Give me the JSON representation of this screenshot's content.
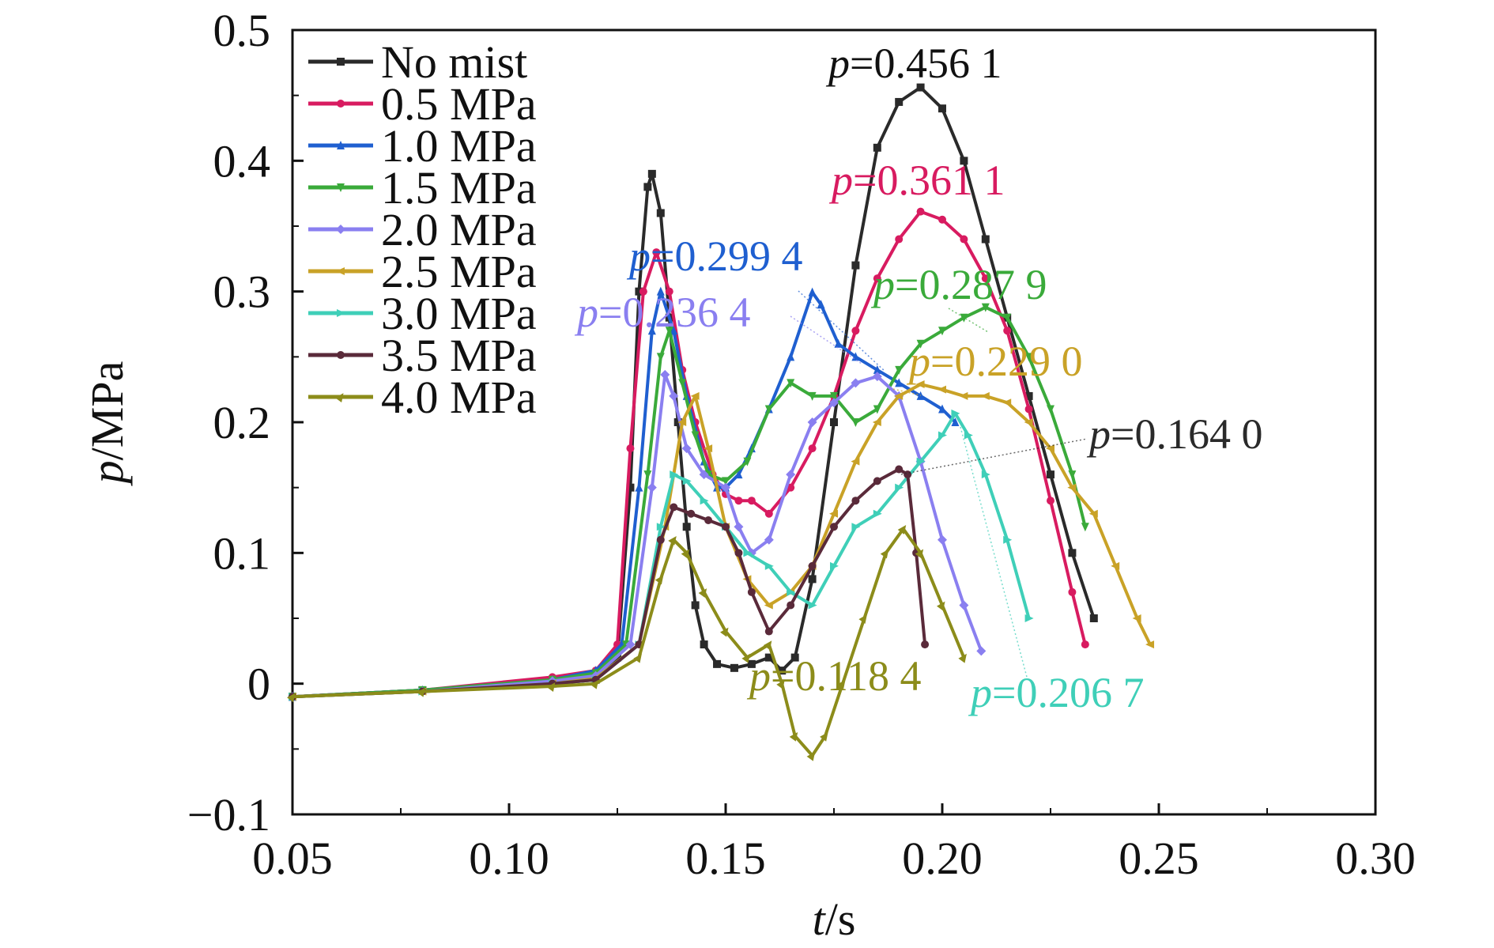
{
  "chart_data": {
    "type": "line",
    "xlabel": {
      "var": "t",
      "unit": "/s"
    },
    "ylabel": {
      "var": "p",
      "unit": "/MPa"
    },
    "xlim": [
      0.05,
      0.3
    ],
    "ylim": [
      -0.1,
      0.5
    ],
    "xticks": [
      0.05,
      0.1,
      0.15,
      0.2,
      0.25,
      0.3
    ],
    "xtick_labels": [
      "0.05",
      "0.10",
      "0.15",
      "0.20",
      "0.25",
      "0.30"
    ],
    "yticks": [
      -0.1,
      0,
      0.1,
      0.2,
      0.3,
      0.4,
      0.5
    ],
    "ytick_labels": [
      "−0.1",
      "0",
      "0.1",
      "0.2",
      "0.3",
      "0.4",
      "0.5"
    ],
    "grid": false,
    "legend_position": "top-left",
    "series": [
      {
        "name": "No mist",
        "color": "#2a2a2a",
        "marker": "square",
        "points": [
          [
            0.05,
            -0.01
          ],
          [
            0.08,
            -0.005
          ],
          [
            0.11,
            0.0
          ],
          [
            0.12,
            0.003
          ],
          [
            0.125,
            0.02
          ],
          [
            0.128,
            0.15
          ],
          [
            0.13,
            0.3
          ],
          [
            0.132,
            0.38
          ],
          [
            0.133,
            0.39
          ],
          [
            0.135,
            0.36
          ],
          [
            0.137,
            0.28
          ],
          [
            0.139,
            0.2
          ],
          [
            0.141,
            0.12
          ],
          [
            0.143,
            0.06
          ],
          [
            0.145,
            0.03
          ],
          [
            0.148,
            0.015
          ],
          [
            0.152,
            0.012
          ],
          [
            0.156,
            0.015
          ],
          [
            0.16,
            0.02
          ],
          [
            0.163,
            0.01
          ],
          [
            0.166,
            0.02
          ],
          [
            0.17,
            0.08
          ],
          [
            0.175,
            0.2
          ],
          [
            0.18,
            0.32
          ],
          [
            0.185,
            0.41
          ],
          [
            0.19,
            0.445
          ],
          [
            0.195,
            0.4561
          ],
          [
            0.2,
            0.44
          ],
          [
            0.205,
            0.4
          ],
          [
            0.21,
            0.34
          ],
          [
            0.215,
            0.28
          ],
          [
            0.22,
            0.22
          ],
          [
            0.225,
            0.16
          ],
          [
            0.23,
            0.1
          ],
          [
            0.235,
            0.05
          ]
        ]
      },
      {
        "name": "0.5 MPa",
        "color": "#d81b60",
        "marker": "circle",
        "points": [
          [
            0.05,
            -0.01
          ],
          [
            0.08,
            -0.005
          ],
          [
            0.11,
            0.005
          ],
          [
            0.12,
            0.01
          ],
          [
            0.125,
            0.03
          ],
          [
            0.128,
            0.18
          ],
          [
            0.131,
            0.3
          ],
          [
            0.134,
            0.33
          ],
          [
            0.137,
            0.3
          ],
          [
            0.14,
            0.24
          ],
          [
            0.143,
            0.2
          ],
          [
            0.147,
            0.16
          ],
          [
            0.15,
            0.145
          ],
          [
            0.153,
            0.14
          ],
          [
            0.156,
            0.14
          ],
          [
            0.16,
            0.13
          ],
          [
            0.165,
            0.15
          ],
          [
            0.17,
            0.18
          ],
          [
            0.175,
            0.22
          ],
          [
            0.18,
            0.27
          ],
          [
            0.185,
            0.31
          ],
          [
            0.19,
            0.34
          ],
          [
            0.195,
            0.3611
          ],
          [
            0.2,
            0.355
          ],
          [
            0.205,
            0.34
          ],
          [
            0.21,
            0.31
          ],
          [
            0.215,
            0.27
          ],
          [
            0.22,
            0.21
          ],
          [
            0.225,
            0.14
          ],
          [
            0.23,
            0.07
          ],
          [
            0.233,
            0.03
          ]
        ]
      },
      {
        "name": "1.0 MPa",
        "color": "#1f5fd0",
        "marker": "triangle",
        "points": [
          [
            0.05,
            -0.01
          ],
          [
            0.08,
            -0.005
          ],
          [
            0.11,
            0.003
          ],
          [
            0.12,
            0.01
          ],
          [
            0.126,
            0.03
          ],
          [
            0.13,
            0.15
          ],
          [
            0.133,
            0.27
          ],
          [
            0.135,
            0.3
          ],
          [
            0.138,
            0.27
          ],
          [
            0.141,
            0.22
          ],
          [
            0.145,
            0.17
          ],
          [
            0.148,
            0.15
          ],
          [
            0.15,
            0.15
          ],
          [
            0.153,
            0.16
          ],
          [
            0.156,
            0.18
          ],
          [
            0.16,
            0.21
          ],
          [
            0.165,
            0.25
          ],
          [
            0.17,
            0.2994
          ],
          [
            0.172,
            0.29
          ],
          [
            0.176,
            0.26
          ],
          [
            0.18,
            0.25
          ],
          [
            0.185,
            0.24
          ],
          [
            0.19,
            0.23
          ],
          [
            0.195,
            0.22
          ],
          [
            0.2,
            0.21
          ],
          [
            0.203,
            0.2
          ]
        ]
      },
      {
        "name": "1.5 MPa",
        "color": "#3aaa3a",
        "marker": "triangle-down",
        "points": [
          [
            0.05,
            -0.01
          ],
          [
            0.08,
            -0.005
          ],
          [
            0.11,
            0.003
          ],
          [
            0.12,
            0.008
          ],
          [
            0.127,
            0.03
          ],
          [
            0.132,
            0.16
          ],
          [
            0.135,
            0.25
          ],
          [
            0.137,
            0.27
          ],
          [
            0.14,
            0.23
          ],
          [
            0.143,
            0.19
          ],
          [
            0.146,
            0.16
          ],
          [
            0.15,
            0.155
          ],
          [
            0.155,
            0.17
          ],
          [
            0.16,
            0.21
          ],
          [
            0.165,
            0.23
          ],
          [
            0.17,
            0.22
          ],
          [
            0.175,
            0.22
          ],
          [
            0.18,
            0.2
          ],
          [
            0.185,
            0.21
          ],
          [
            0.19,
            0.24
          ],
          [
            0.195,
            0.26
          ],
          [
            0.2,
            0.27
          ],
          [
            0.205,
            0.28
          ],
          [
            0.21,
            0.2879
          ],
          [
            0.215,
            0.28
          ],
          [
            0.22,
            0.25
          ],
          [
            0.225,
            0.21
          ],
          [
            0.23,
            0.16
          ],
          [
            0.233,
            0.12
          ]
        ]
      },
      {
        "name": "2.0 MPa",
        "color": "#8a7ff0",
        "marker": "diamond",
        "points": [
          [
            0.05,
            -0.01
          ],
          [
            0.08,
            -0.006
          ],
          [
            0.11,
            0.002
          ],
          [
            0.12,
            0.006
          ],
          [
            0.128,
            0.03
          ],
          [
            0.133,
            0.15
          ],
          [
            0.136,
            0.2364
          ],
          [
            0.138,
            0.22
          ],
          [
            0.141,
            0.18
          ],
          [
            0.145,
            0.16
          ],
          [
            0.15,
            0.15
          ],
          [
            0.153,
            0.12
          ],
          [
            0.156,
            0.1
          ],
          [
            0.16,
            0.11
          ],
          [
            0.165,
            0.16
          ],
          [
            0.17,
            0.2
          ],
          [
            0.175,
            0.215
          ],
          [
            0.18,
            0.23
          ],
          [
            0.185,
            0.235
          ],
          [
            0.19,
            0.22
          ],
          [
            0.195,
            0.17
          ],
          [
            0.2,
            0.11
          ],
          [
            0.205,
            0.06
          ],
          [
            0.209,
            0.025
          ]
        ]
      },
      {
        "name": "2.5 MPa",
        "color": "#c9a227",
        "marker": "left-triangle",
        "points": [
          [
            0.05,
            -0.01
          ],
          [
            0.08,
            -0.006
          ],
          [
            0.11,
            0.0
          ],
          [
            0.12,
            0.004
          ],
          [
            0.13,
            0.03
          ],
          [
            0.136,
            0.12
          ],
          [
            0.14,
            0.2
          ],
          [
            0.143,
            0.22
          ],
          [
            0.146,
            0.18
          ],
          [
            0.15,
            0.12
          ],
          [
            0.155,
            0.08
          ],
          [
            0.16,
            0.06
          ],
          [
            0.165,
            0.07
          ],
          [
            0.17,
            0.09
          ],
          [
            0.175,
            0.13
          ],
          [
            0.18,
            0.17
          ],
          [
            0.185,
            0.2
          ],
          [
            0.19,
            0.22
          ],
          [
            0.195,
            0.229
          ],
          [
            0.2,
            0.225
          ],
          [
            0.205,
            0.22
          ],
          [
            0.21,
            0.22
          ],
          [
            0.215,
            0.215
          ],
          [
            0.22,
            0.2
          ],
          [
            0.225,
            0.18
          ],
          [
            0.23,
            0.15
          ],
          [
            0.235,
            0.13
          ],
          [
            0.24,
            0.09
          ],
          [
            0.245,
            0.05
          ],
          [
            0.248,
            0.03
          ]
        ]
      },
      {
        "name": "3.0 MPa",
        "color": "#3fcfb8",
        "marker": "right-triangle",
        "points": [
          [
            0.05,
            -0.01
          ],
          [
            0.08,
            -0.006
          ],
          [
            0.11,
            0.0
          ],
          [
            0.12,
            0.003
          ],
          [
            0.13,
            0.03
          ],
          [
            0.135,
            0.12
          ],
          [
            0.138,
            0.16
          ],
          [
            0.141,
            0.155
          ],
          [
            0.145,
            0.14
          ],
          [
            0.15,
            0.12
          ],
          [
            0.155,
            0.1
          ],
          [
            0.16,
            0.09
          ],
          [
            0.165,
            0.07
          ],
          [
            0.17,
            0.06
          ],
          [
            0.175,
            0.09
          ],
          [
            0.18,
            0.12
          ],
          [
            0.185,
            0.13
          ],
          [
            0.19,
            0.15
          ],
          [
            0.195,
            0.17
          ],
          [
            0.2,
            0.19
          ],
          [
            0.203,
            0.2067
          ],
          [
            0.206,
            0.19
          ],
          [
            0.21,
            0.16
          ],
          [
            0.215,
            0.11
          ],
          [
            0.22,
            0.05
          ]
        ]
      },
      {
        "name": "3.5 MPa",
        "color": "#5a2a3a",
        "marker": "hexagon",
        "points": [
          [
            0.05,
            -0.01
          ],
          [
            0.08,
            -0.006
          ],
          [
            0.11,
            0.0
          ],
          [
            0.12,
            0.003
          ],
          [
            0.13,
            0.03
          ],
          [
            0.135,
            0.11
          ],
          [
            0.138,
            0.135
          ],
          [
            0.142,
            0.13
          ],
          [
            0.146,
            0.125
          ],
          [
            0.15,
            0.12
          ],
          [
            0.153,
            0.1
          ],
          [
            0.156,
            0.07
          ],
          [
            0.16,
            0.04
          ],
          [
            0.165,
            0.06
          ],
          [
            0.17,
            0.09
          ],
          [
            0.175,
            0.12
          ],
          [
            0.18,
            0.14
          ],
          [
            0.185,
            0.155
          ],
          [
            0.19,
            0.164
          ],
          [
            0.192,
            0.16
          ],
          [
            0.194,
            0.1
          ],
          [
            0.196,
            0.03
          ]
        ]
      },
      {
        "name": "4.0 MPa",
        "color": "#8c8c1a",
        "marker": "star",
        "points": [
          [
            0.05,
            -0.01
          ],
          [
            0.08,
            -0.006
          ],
          [
            0.11,
            -0.002
          ],
          [
            0.12,
            0.0
          ],
          [
            0.13,
            0.02
          ],
          [
            0.135,
            0.08
          ],
          [
            0.138,
            0.11
          ],
          [
            0.141,
            0.1
          ],
          [
            0.145,
            0.07
          ],
          [
            0.15,
            0.04
          ],
          [
            0.155,
            0.02
          ],
          [
            0.16,
            0.03
          ],
          [
            0.163,
            0.0
          ],
          [
            0.166,
            -0.04
          ],
          [
            0.17,
            -0.055
          ],
          [
            0.173,
            -0.04
          ],
          [
            0.177,
            0.0
          ],
          [
            0.182,
            0.05
          ],
          [
            0.187,
            0.1
          ],
          [
            0.191,
            0.1184
          ],
          [
            0.195,
            0.1
          ],
          [
            0.2,
            0.06
          ],
          [
            0.205,
            0.02
          ]
        ]
      }
    ],
    "annotations": [
      {
        "prefix": "p",
        "text": "=0.456 1",
        "color": "#111111"
      },
      {
        "prefix": "p",
        "text": "=0.361 1",
        "color": "#d81b60"
      },
      {
        "prefix": "p",
        "text": "=0.299 4",
        "color": "#1f5fd0"
      },
      {
        "prefix": "p",
        "text": "=0.287 9",
        "color": "#3aaa3a"
      },
      {
        "prefix": "p",
        "text": "=0.236 4",
        "color": "#8a7ff0"
      },
      {
        "prefix": "p",
        "text": "=0.229 0",
        "color": "#c9a227"
      },
      {
        "prefix": "p",
        "text": "=0.164 0",
        "color": "#2a2a2a"
      },
      {
        "prefix": "p",
        "text": "=0.118 4",
        "color": "#8c8c1a"
      },
      {
        "prefix": "p",
        "text": "=0.206 7",
        "color": "#3fcfb8"
      }
    ]
  }
}
